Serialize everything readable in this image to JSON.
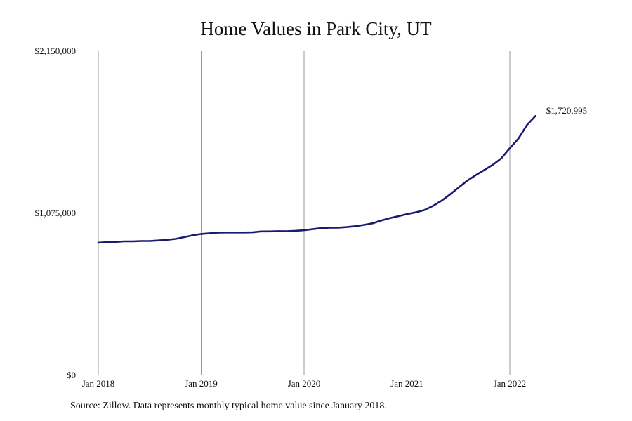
{
  "chart_data": {
    "type": "line",
    "title": "Home Values in Park City, UT",
    "xlabel": "",
    "ylabel": "",
    "ylim": [
      0,
      2150000
    ],
    "y_ticks": [
      {
        "value": 0,
        "label": "$0"
      },
      {
        "value": 1075000,
        "label": "$1,075,000"
      },
      {
        "value": 2150000,
        "label": "$2,150,000"
      }
    ],
    "x_ticks": [
      {
        "value": 0,
        "label": "Jan 2018"
      },
      {
        "value": 12,
        "label": "Jan 2019"
      },
      {
        "value": 24,
        "label": "Jan 2020"
      },
      {
        "value": 36,
        "label": "Jan 2021"
      },
      {
        "value": 48,
        "label": "Jan 2022"
      }
    ],
    "x_unit": "month index",
    "grid": "vertical",
    "color": "#1a1a6e",
    "series": [
      {
        "values": [
          880000,
          884000,
          885000,
          889000,
          889000,
          891000,
          891000,
          895000,
          899000,
          905000,
          917000,
          929000,
          938000,
          943000,
          947000,
          948000,
          948000,
          948000,
          949000,
          955000,
          955000,
          957000,
          956000,
          959000,
          963000,
          970000,
          977000,
          980000,
          980000,
          984000,
          990000,
          998000,
          1009000,
          1027000,
          1043000,
          1056000,
          1070000,
          1081000,
          1096000,
          1123000,
          1157000,
          1199000,
          1245000,
          1290000,
          1327000,
          1361000,
          1396000,
          1439000,
          1507000,
          1570000,
          1660000,
          1720995
        ]
      }
    ],
    "end_label": "$1,720,995"
  },
  "footnote": "Source: Zillow. Data represents monthly typical home value since January 2018."
}
